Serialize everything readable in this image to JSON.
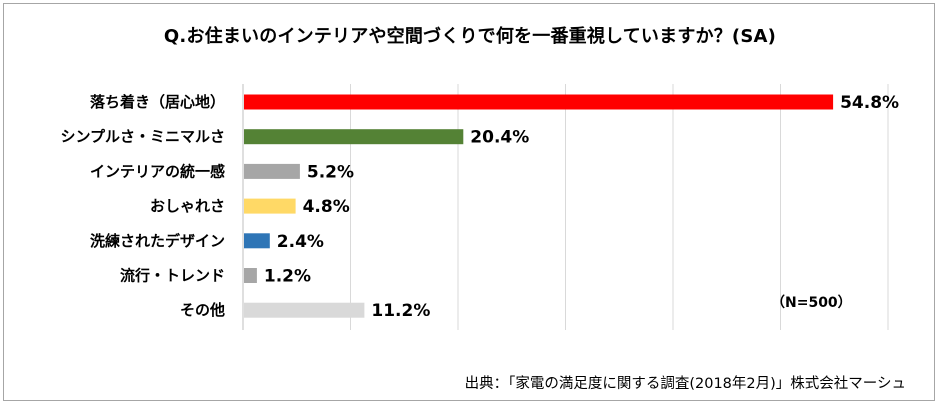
{
  "chart_data": {
    "type": "bar",
    "orientation": "horizontal",
    "title": "Q.お住まいのインテリアや空間づくりで何を一番重視していますか？(SA)",
    "categories": [
      "落ち着き（居心地）",
      "シンプルさ・ミニマルさ",
      "インテリアの統一感",
      "おしゃれさ",
      "洗練されたデザイン",
      "流行・トレンド",
      "その他"
    ],
    "values": [
      54.8,
      20.4,
      5.2,
      4.8,
      2.4,
      1.2,
      11.2
    ],
    "value_labels": [
      "54.8%",
      "20.4%",
      "5.2%",
      "4.8%",
      "2.4%",
      "1.2%",
      "11.2%"
    ],
    "bar_colors": [
      "#ff0000",
      "#548235",
      "#a6a6a6",
      "#ffd966",
      "#2e75b6",
      "#a6a6a6",
      "#d9d9d9"
    ],
    "xlim": [
      0,
      60
    ],
    "grid": true,
    "xlabel": "",
    "ylabel": ""
  },
  "note": "（N=500）",
  "source": "出典：「家電の満足度に関する調査(2018年2月)」株式会社マーシュ"
}
